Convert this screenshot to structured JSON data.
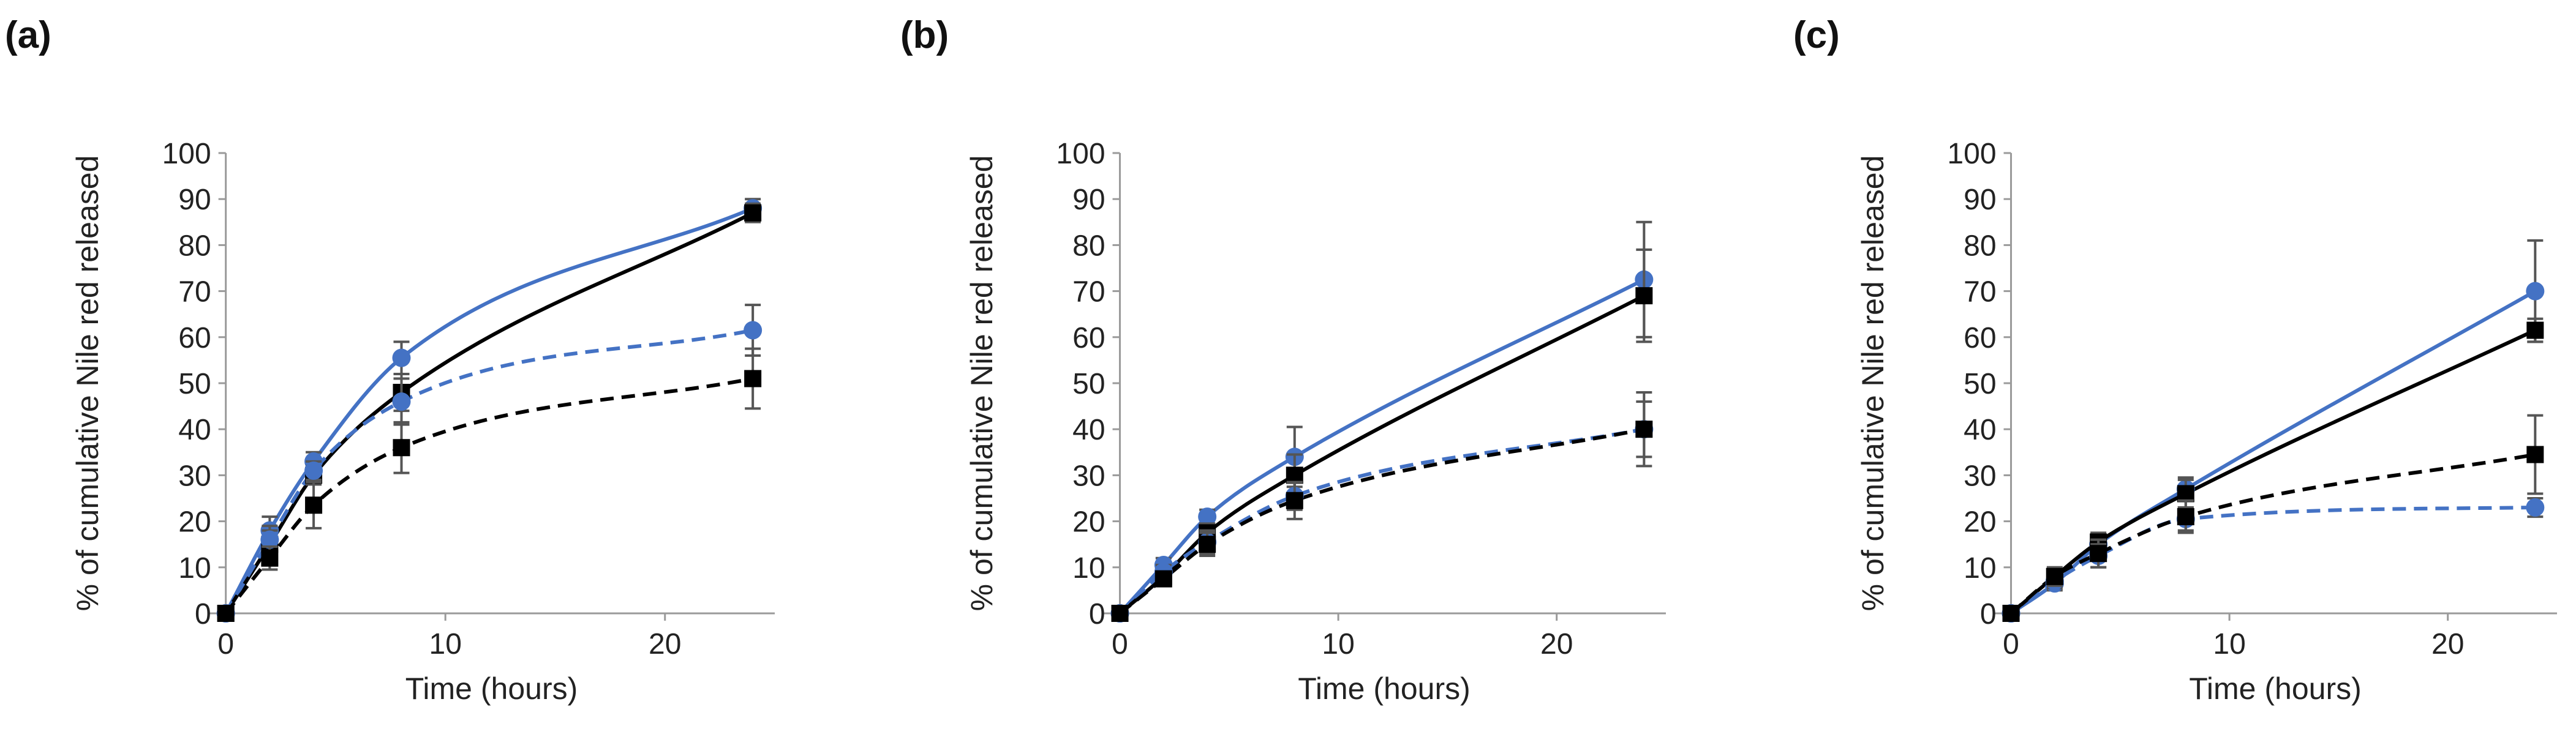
{
  "chart_data": [
    {
      "type": "line",
      "panel_label": "(a)",
      "xlabel": "Time (hours)",
      "ylabel": "% of cumulative Nile red released",
      "xlim": [
        -0.8,
        25
      ],
      "ylim": [
        0,
        100
      ],
      "xticks": [
        0,
        10,
        20
      ],
      "yticks": [
        0,
        10,
        20,
        30,
        40,
        50,
        60,
        70,
        80,
        90,
        100
      ],
      "series": [
        {
          "name": "blue solid",
          "color": "#4472C4",
          "dash": "solid",
          "marker": "circle",
          "x": [
            0,
            2,
            4,
            8,
            24
          ],
          "values": [
            0,
            18,
            33,
            55.5,
            88
          ],
          "errors": [
            0,
            3,
            2,
            3.5,
            2
          ]
        },
        {
          "name": "black solid",
          "color": "#000000",
          "dash": "solid",
          "marker": "square",
          "x": [
            0,
            2,
            4,
            8,
            24
          ],
          "values": [
            0,
            15,
            30,
            48,
            87
          ],
          "errors": [
            0,
            3,
            2,
            4,
            2
          ]
        },
        {
          "name": "blue dashed",
          "color": "#4472C4",
          "dash": "dashed",
          "marker": "circle",
          "x": [
            0,
            2,
            4,
            8,
            24
          ],
          "values": [
            0,
            16,
            31,
            46,
            61.5
          ],
          "errors": [
            0,
            3,
            2,
            5,
            5.5
          ]
        },
        {
          "name": "black dashed",
          "color": "#000000",
          "dash": "dashed",
          "marker": "square",
          "x": [
            0,
            2,
            4,
            8,
            24
          ],
          "values": [
            0,
            12,
            23.5,
            36,
            51
          ],
          "errors": [
            0,
            2.5,
            5,
            5.5,
            6.5
          ]
        }
      ]
    },
    {
      "type": "line",
      "panel_label": "(b)",
      "xlabel": "Time (hours)",
      "ylabel": "% of cumulative Nile red released",
      "xlim": [
        -0.8,
        25
      ],
      "ylim": [
        0,
        100
      ],
      "xticks": [
        0,
        10,
        20
      ],
      "yticks": [
        0,
        10,
        20,
        30,
        40,
        50,
        60,
        70,
        80,
        90,
        100
      ],
      "series": [
        {
          "name": "blue solid",
          "color": "#4472C4",
          "dash": "solid",
          "marker": "circle",
          "x": [
            0,
            2,
            4,
            8,
            24
          ],
          "values": [
            0,
            10.5,
            21,
            34,
            72.5
          ],
          "errors": [
            0,
            1.5,
            1.5,
            6.5,
            12.5
          ]
        },
        {
          "name": "black solid",
          "color": "#000000",
          "dash": "solid",
          "marker": "square",
          "x": [
            0,
            2,
            4,
            8,
            24
          ],
          "values": [
            0,
            8,
            17.5,
            30,
            69
          ],
          "errors": [
            0,
            1.5,
            2,
            4.5,
            10
          ]
        },
        {
          "name": "blue dashed",
          "color": "#4472C4",
          "dash": "dashed",
          "marker": "circle",
          "x": [
            0,
            2,
            4,
            8,
            24
          ],
          "values": [
            0,
            9,
            15.5,
            25.5,
            40
          ],
          "errors": [
            0,
            1.5,
            2.5,
            3,
            6
          ]
        },
        {
          "name": "black dashed",
          "color": "#000000",
          "dash": "dashed",
          "marker": "square",
          "x": [
            0,
            2,
            4,
            8,
            24
          ],
          "values": [
            0,
            7.5,
            15,
            24.5,
            40
          ],
          "errors": [
            0,
            1.5,
            2.5,
            4,
            8
          ]
        }
      ]
    },
    {
      "type": "line",
      "panel_label": "(c)",
      "xlabel": "Time (hours)",
      "ylabel": "% of cumulative Nile red released",
      "xlim": [
        -0.8,
        25
      ],
      "ylim": [
        0,
        100
      ],
      "xticks": [
        0,
        10,
        20
      ],
      "yticks": [
        0,
        10,
        20,
        30,
        40,
        50,
        60,
        70,
        80,
        90,
        100
      ],
      "series": [
        {
          "name": "blue solid",
          "color": "#4472C4",
          "dash": "solid",
          "marker": "circle",
          "x": [
            0,
            2,
            4,
            8,
            24
          ],
          "values": [
            0,
            6.5,
            15,
            27,
            70
          ],
          "errors": [
            0,
            1.5,
            2,
            2.5,
            11
          ]
        },
        {
          "name": "black solid",
          "color": "#000000",
          "dash": "solid",
          "marker": "square",
          "x": [
            0,
            2,
            4,
            8,
            24
          ],
          "values": [
            0,
            8,
            15.5,
            26,
            61.5
          ],
          "errors": [
            0,
            1.5,
            2,
            3,
            2.5
          ]
        },
        {
          "name": "blue dashed",
          "color": "#4472C4",
          "dash": "dashed",
          "marker": "circle",
          "x": [
            0,
            2,
            4,
            8,
            24
          ],
          "values": [
            0,
            7,
            12.5,
            20.5,
            23
          ],
          "errors": [
            0,
            1.5,
            2.5,
            2.5,
            2
          ]
        },
        {
          "name": "black dashed",
          "color": "#000000",
          "dash": "dashed",
          "marker": "square",
          "x": [
            0,
            2,
            4,
            8,
            24
          ],
          "values": [
            0,
            8,
            13,
            21,
            34.5
          ],
          "errors": [
            0,
            2,
            3,
            3.5,
            8.5
          ]
        }
      ]
    }
  ]
}
